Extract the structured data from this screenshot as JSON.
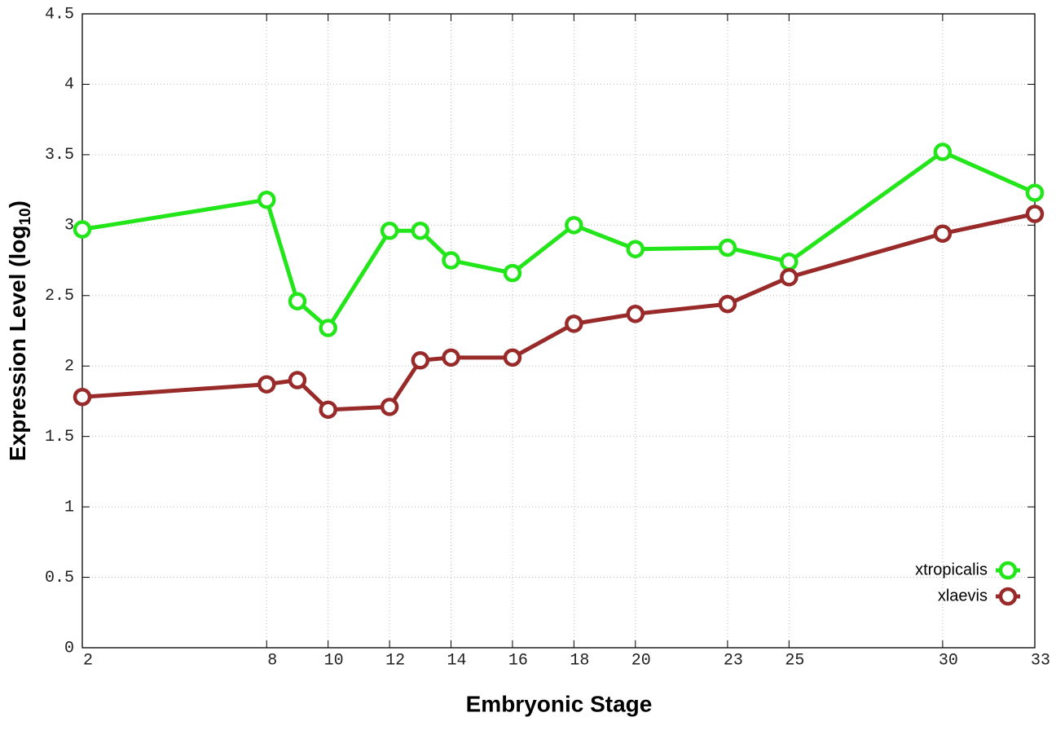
{
  "chart_data": {
    "type": "line",
    "xlabel": "Embryonic Stage",
    "ylabel": [
      "Expression Level (log",
      "10",
      ")"
    ],
    "x": [
      2,
      8,
      9,
      10,
      12,
      13,
      14,
      16,
      18,
      20,
      23,
      25,
      30,
      33
    ],
    "series": [
      {
        "name": "xtropicalis",
        "color": "#22e619",
        "values": [
          2.97,
          3.18,
          2.46,
          2.27,
          2.96,
          2.96,
          2.75,
          2.66,
          3.0,
          2.83,
          2.84,
          2.74,
          3.52,
          3.23
        ]
      },
      {
        "name": "xlaevis",
        "color": "#992a2a",
        "values": [
          1.78,
          1.87,
          1.9,
          1.69,
          1.71,
          2.04,
          2.06,
          2.06,
          2.3,
          2.37,
          2.44,
          2.63,
          2.94,
          3.08
        ]
      }
    ],
    "xlim": [
      2,
      33
    ],
    "xticks": [
      2,
      8,
      10,
      12,
      14,
      16,
      18,
      20,
      23,
      25,
      30,
      33
    ],
    "ylim": [
      0,
      4.5
    ],
    "yticks": [
      0,
      0.5,
      1,
      1.5,
      2,
      2.5,
      3,
      3.5,
      4,
      4.5
    ],
    "grid": true,
    "legend": "lower right"
  }
}
